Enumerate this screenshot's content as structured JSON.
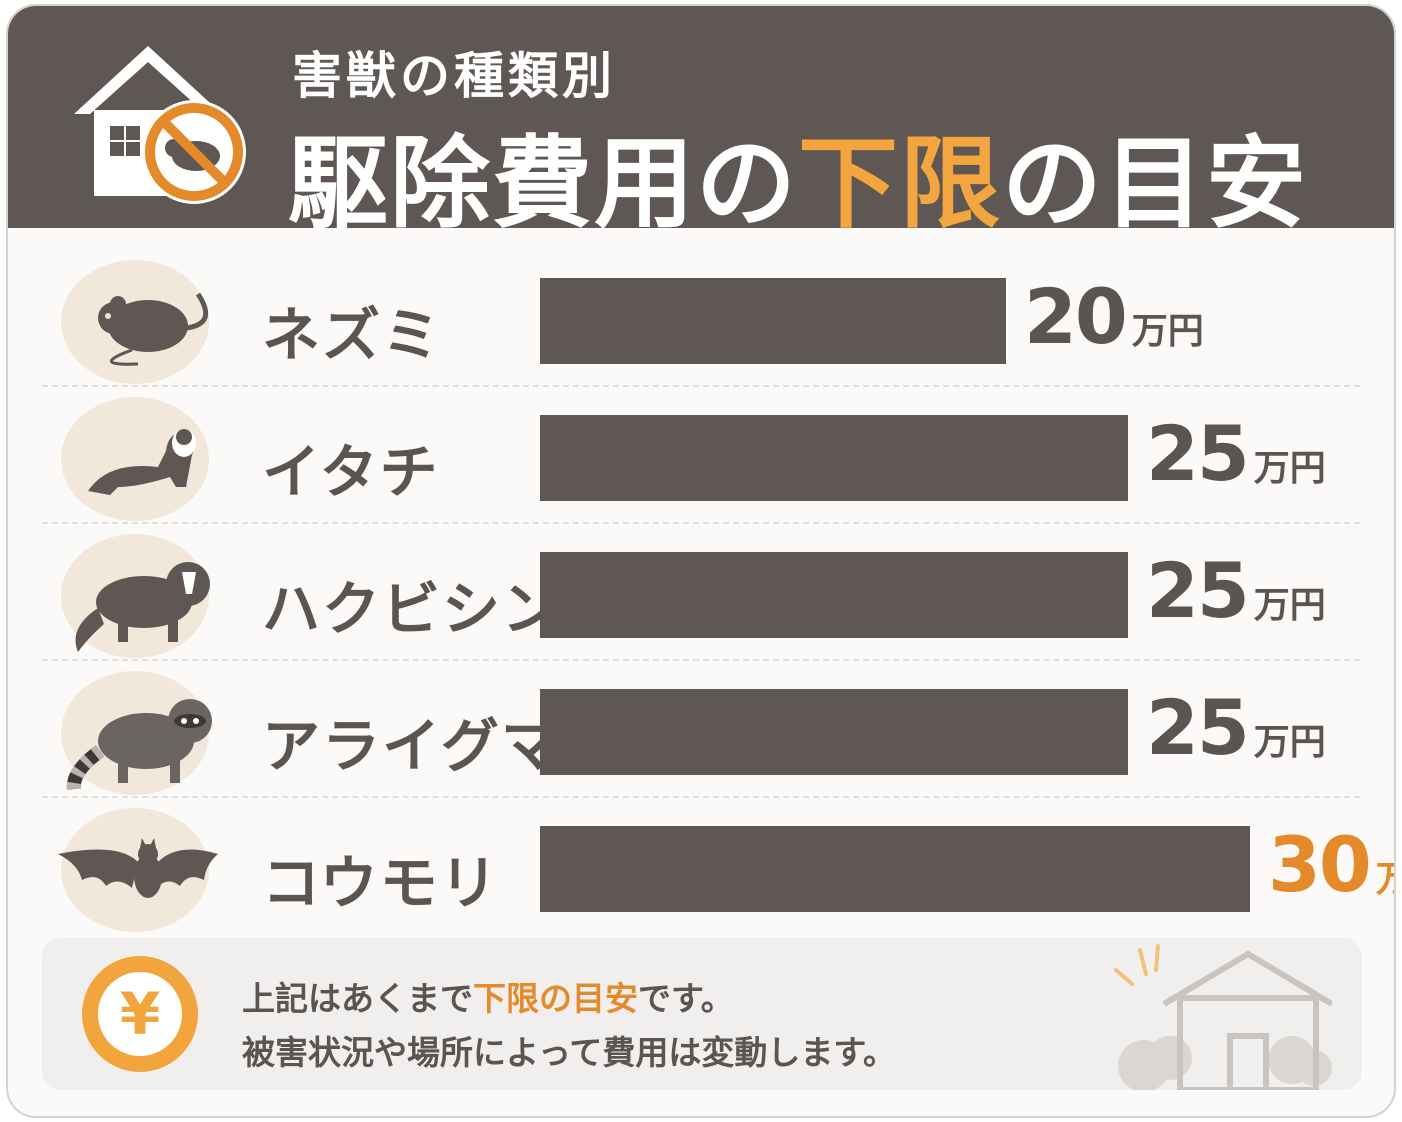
{
  "header": {
    "subtitle": "害獣の種類別",
    "title_part1": "駆除費用の",
    "title_highlight": "下限",
    "title_part2": "の目安",
    "house_icon": "house-with-no-pest-icon"
  },
  "chart_data": {
    "type": "bar",
    "orientation": "horizontal",
    "title": "害獣の種類別 駆除費用の下限の目安",
    "categories": [
      "ネズミ",
      "イタチ",
      "ハクビシン",
      "アライグマ",
      "コウモリ"
    ],
    "values": [
      20,
      25,
      25,
      25,
      30
    ],
    "value_labels": [
      "20",
      "25",
      "25",
      "25",
      "30"
    ],
    "unit": "万円",
    "icons": [
      "rat-icon",
      "weasel-icon",
      "masked-palm-civet-icon",
      "raccoon-icon",
      "bat-icon"
    ],
    "highlight_index": 4,
    "colors": {
      "bar": "#5f5753",
      "highlight": "#e58a2a",
      "text": "#5b5450"
    }
  },
  "note": {
    "line1_before": "上記はあくまで",
    "line1_highlight": "下限の目安",
    "line1_after": "です。",
    "line2": "被害状況や場所によって費用は変動します。",
    "yen_symbol": "¥",
    "house_icon": "house-outline-icon"
  },
  "colors": {
    "header_bg": "#5f5753",
    "accent": "#f3a640",
    "circle_bg": "#f1e7da"
  }
}
